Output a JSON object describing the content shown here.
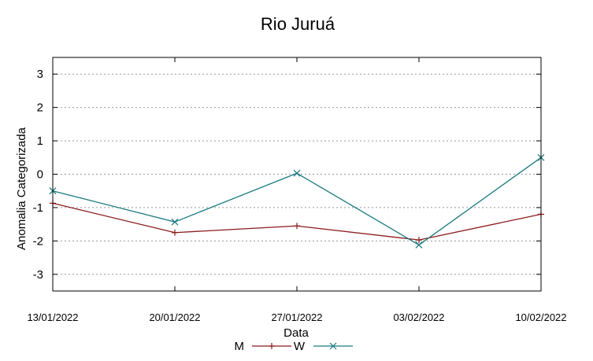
{
  "chart_data": {
    "type": "line",
    "title": "Rio Juruá",
    "xlabel": "Data",
    "ylabel": "Anomalia Categorizada",
    "categories": [
      "13/01/2022",
      "20/01/2022",
      "27/01/2022",
      "03/02/2022",
      "10/02/2022"
    ],
    "ylim": [
      -3.5,
      3.5
    ],
    "yticks": [
      "3",
      "2",
      "1",
      "0",
      "-1",
      "-2",
      "-3"
    ],
    "ytick_values": [
      3,
      2,
      1,
      0,
      -1,
      -2,
      -3
    ],
    "grid": "horizontal-dotted",
    "legend_position": "bottom",
    "series": [
      {
        "name": "M",
        "color": "#8b1a1a",
        "marker": "plus",
        "values": [
          -0.87,
          -1.75,
          -1.55,
          -1.97,
          -1.2
        ]
      },
      {
        "name": "W",
        "color": "#1a7a80",
        "marker": "cross",
        "values": [
          -0.5,
          -1.43,
          0.03,
          -2.12,
          0.5
        ]
      }
    ]
  }
}
